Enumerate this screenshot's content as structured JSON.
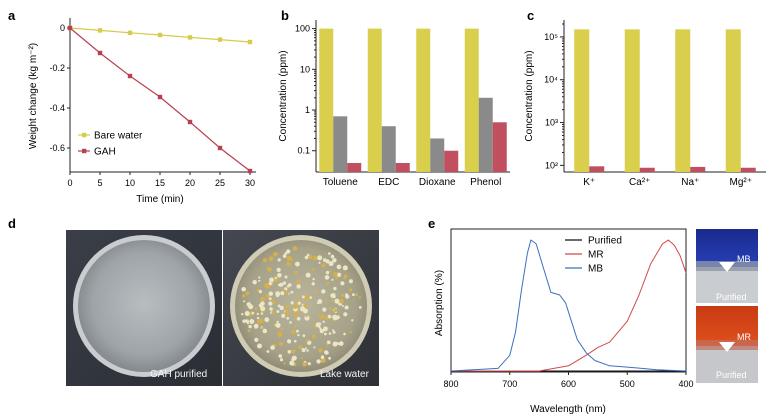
{
  "panel_labels": {
    "a": "a",
    "b": "b",
    "c": "c",
    "d": "d",
    "e": "e"
  },
  "colors": {
    "bare_water": "#d4cc4a",
    "gah": "#b84050",
    "bar_yellow": "#d9cf4c",
    "bar_gray": "#8a8a8a",
    "bar_red": "#c05060",
    "purified": "#111111",
    "mr": "#d24a4a",
    "mb": "#3a6fc0"
  },
  "chart_data": [
    {
      "id": "a",
      "type": "line",
      "xlabel": "Time (min)",
      "ylabel": "Weight change (kg m⁻²)",
      "xlim": [
        0,
        30
      ],
      "ylim": [
        -0.72,
        0.02
      ],
      "xticks": [
        "0",
        "5",
        "10",
        "15",
        "20",
        "25",
        "30"
      ],
      "yticks": [
        "0",
        "-0.2",
        "-0.4",
        "-0.6"
      ],
      "legend_position": "center-left",
      "series": [
        {
          "name": "Bare water",
          "x": [
            0,
            5,
            10,
            15,
            20,
            25,
            30
          ],
          "values": [
            0,
            -0.012,
            -0.024,
            -0.035,
            -0.047,
            -0.058,
            -0.07
          ]
        },
        {
          "name": "GAH",
          "x": [
            0,
            5,
            10,
            15,
            20,
            25,
            30
          ],
          "values": [
            0,
            -0.125,
            -0.24,
            -0.345,
            -0.47,
            -0.6,
            -0.715
          ]
        }
      ]
    },
    {
      "id": "b",
      "type": "bar",
      "ylabel": "Concentration (ppm)",
      "yscale": "log",
      "ylim": [
        0.03,
        130
      ],
      "yticks": [
        "0.1",
        "1",
        "10",
        "100"
      ],
      "categories": [
        "Toluene",
        "EDC",
        "Dioxane",
        "Phenol"
      ],
      "series": [
        {
          "values": [
            100,
            100,
            100,
            100
          ]
        },
        {
          "values": [
            0.7,
            0.4,
            0.2,
            2.0
          ]
        },
        {
          "values": [
            0.05,
            0.05,
            0.1,
            0.5
          ]
        }
      ]
    },
    {
      "id": "c",
      "type": "bar",
      "ylabel": "Concentration (ppm)",
      "yscale": "log",
      "ylim": [
        70,
        200000
      ],
      "yticks": [
        "10²",
        "10³",
        "10⁴",
        "10⁵"
      ],
      "categories": [
        "K⁺",
        "Ca²⁺",
        "Na⁺",
        "Mg²⁺"
      ],
      "series": [
        {
          "values": [
            150000,
            150000,
            150000,
            150000
          ]
        },
        {
          "values": [
            95,
            88,
            92,
            88
          ]
        }
      ]
    },
    {
      "id": "e",
      "type": "line",
      "xlabel": "Wavelength (nm)",
      "ylabel": "Absorption (%)",
      "xlim": [
        800,
        400
      ],
      "xticks": [
        "800",
        "700",
        "600",
        "500",
        "400"
      ],
      "legend_position": "top-right",
      "series": [
        {
          "name": "Purified",
          "x": [
            800,
            400
          ],
          "values": [
            0,
            0
          ]
        },
        {
          "name": "MR",
          "x": [
            800,
            650,
            600,
            570,
            550,
            530,
            500,
            480,
            460,
            440,
            430,
            420,
            410,
            400
          ],
          "values": [
            0,
            0,
            0.04,
            0.12,
            0.18,
            0.22,
            0.38,
            0.58,
            0.82,
            0.97,
            1.0,
            0.96,
            0.88,
            0.75
          ]
        },
        {
          "name": "MB",
          "x": [
            800,
            720,
            700,
            690,
            680,
            670,
            664,
            655,
            645,
            630,
            615,
            605,
            595,
            585,
            570,
            555,
            530,
            500,
            450,
            400
          ],
          "values": [
            0,
            0.02,
            0.12,
            0.3,
            0.62,
            0.9,
            1.0,
            0.97,
            0.82,
            0.6,
            0.58,
            0.52,
            0.38,
            0.24,
            0.14,
            0.08,
            0.04,
            0.03,
            0.01,
            0.0
          ]
        }
      ]
    }
  ],
  "photos": {
    "left_caption": "GAH purified",
    "right_caption": "Lake water"
  },
  "swatches": {
    "mb_label": "MB",
    "mb_purified": "Purified",
    "mr_label": "MR",
    "mr_purified": "Purified"
  }
}
